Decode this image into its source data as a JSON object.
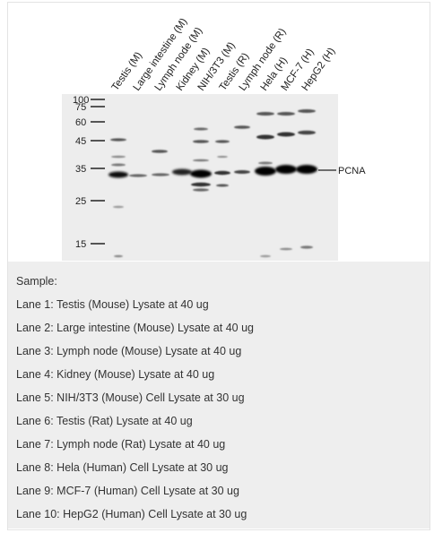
{
  "figure": {
    "lane_labels": [
      "Testis (M)",
      "Large intestine (M)",
      "Lymph node (M)",
      "Kidney (M)",
      "NIH/3T3 (M)",
      "Testis (R)",
      "Lymph node (R)",
      "Hela (H)",
      "MCF-7 (H)",
      "HepG2 (H)"
    ],
    "markers": [
      "100",
      "75",
      "60",
      "45",
      "35",
      "25",
      "15"
    ],
    "target_label": "PCNA"
  },
  "legend": {
    "heading": "Sample:",
    "lanes": [
      "Lane 1: Testis (Mouse) Lysate at 40 ug",
      "Lane 2: Large intestine (Mouse) Lysate at 40 ug",
      "Lane 3: Lymph node (Mouse) Lysate at 40 ug",
      "Lane 4: Kidney (Mouse) Lysate at 40 ug",
      "Lane 5: NIH/3T3 (Mouse) Cell Lysate at 30 ug",
      "Lane 6: Testis (Rat) Lysate at 40 ug",
      "Lane 7: Lymph node (Rat) Lysate at 40 ug",
      "Lane 8: Hela (Human) Cell Lysate at 30 ug",
      "Lane 9: MCF-7 (Human) Cell Lysate at 30 ug",
      "Lane 10: HepG2 (Human) Cell Lysate at 30 ug"
    ]
  }
}
